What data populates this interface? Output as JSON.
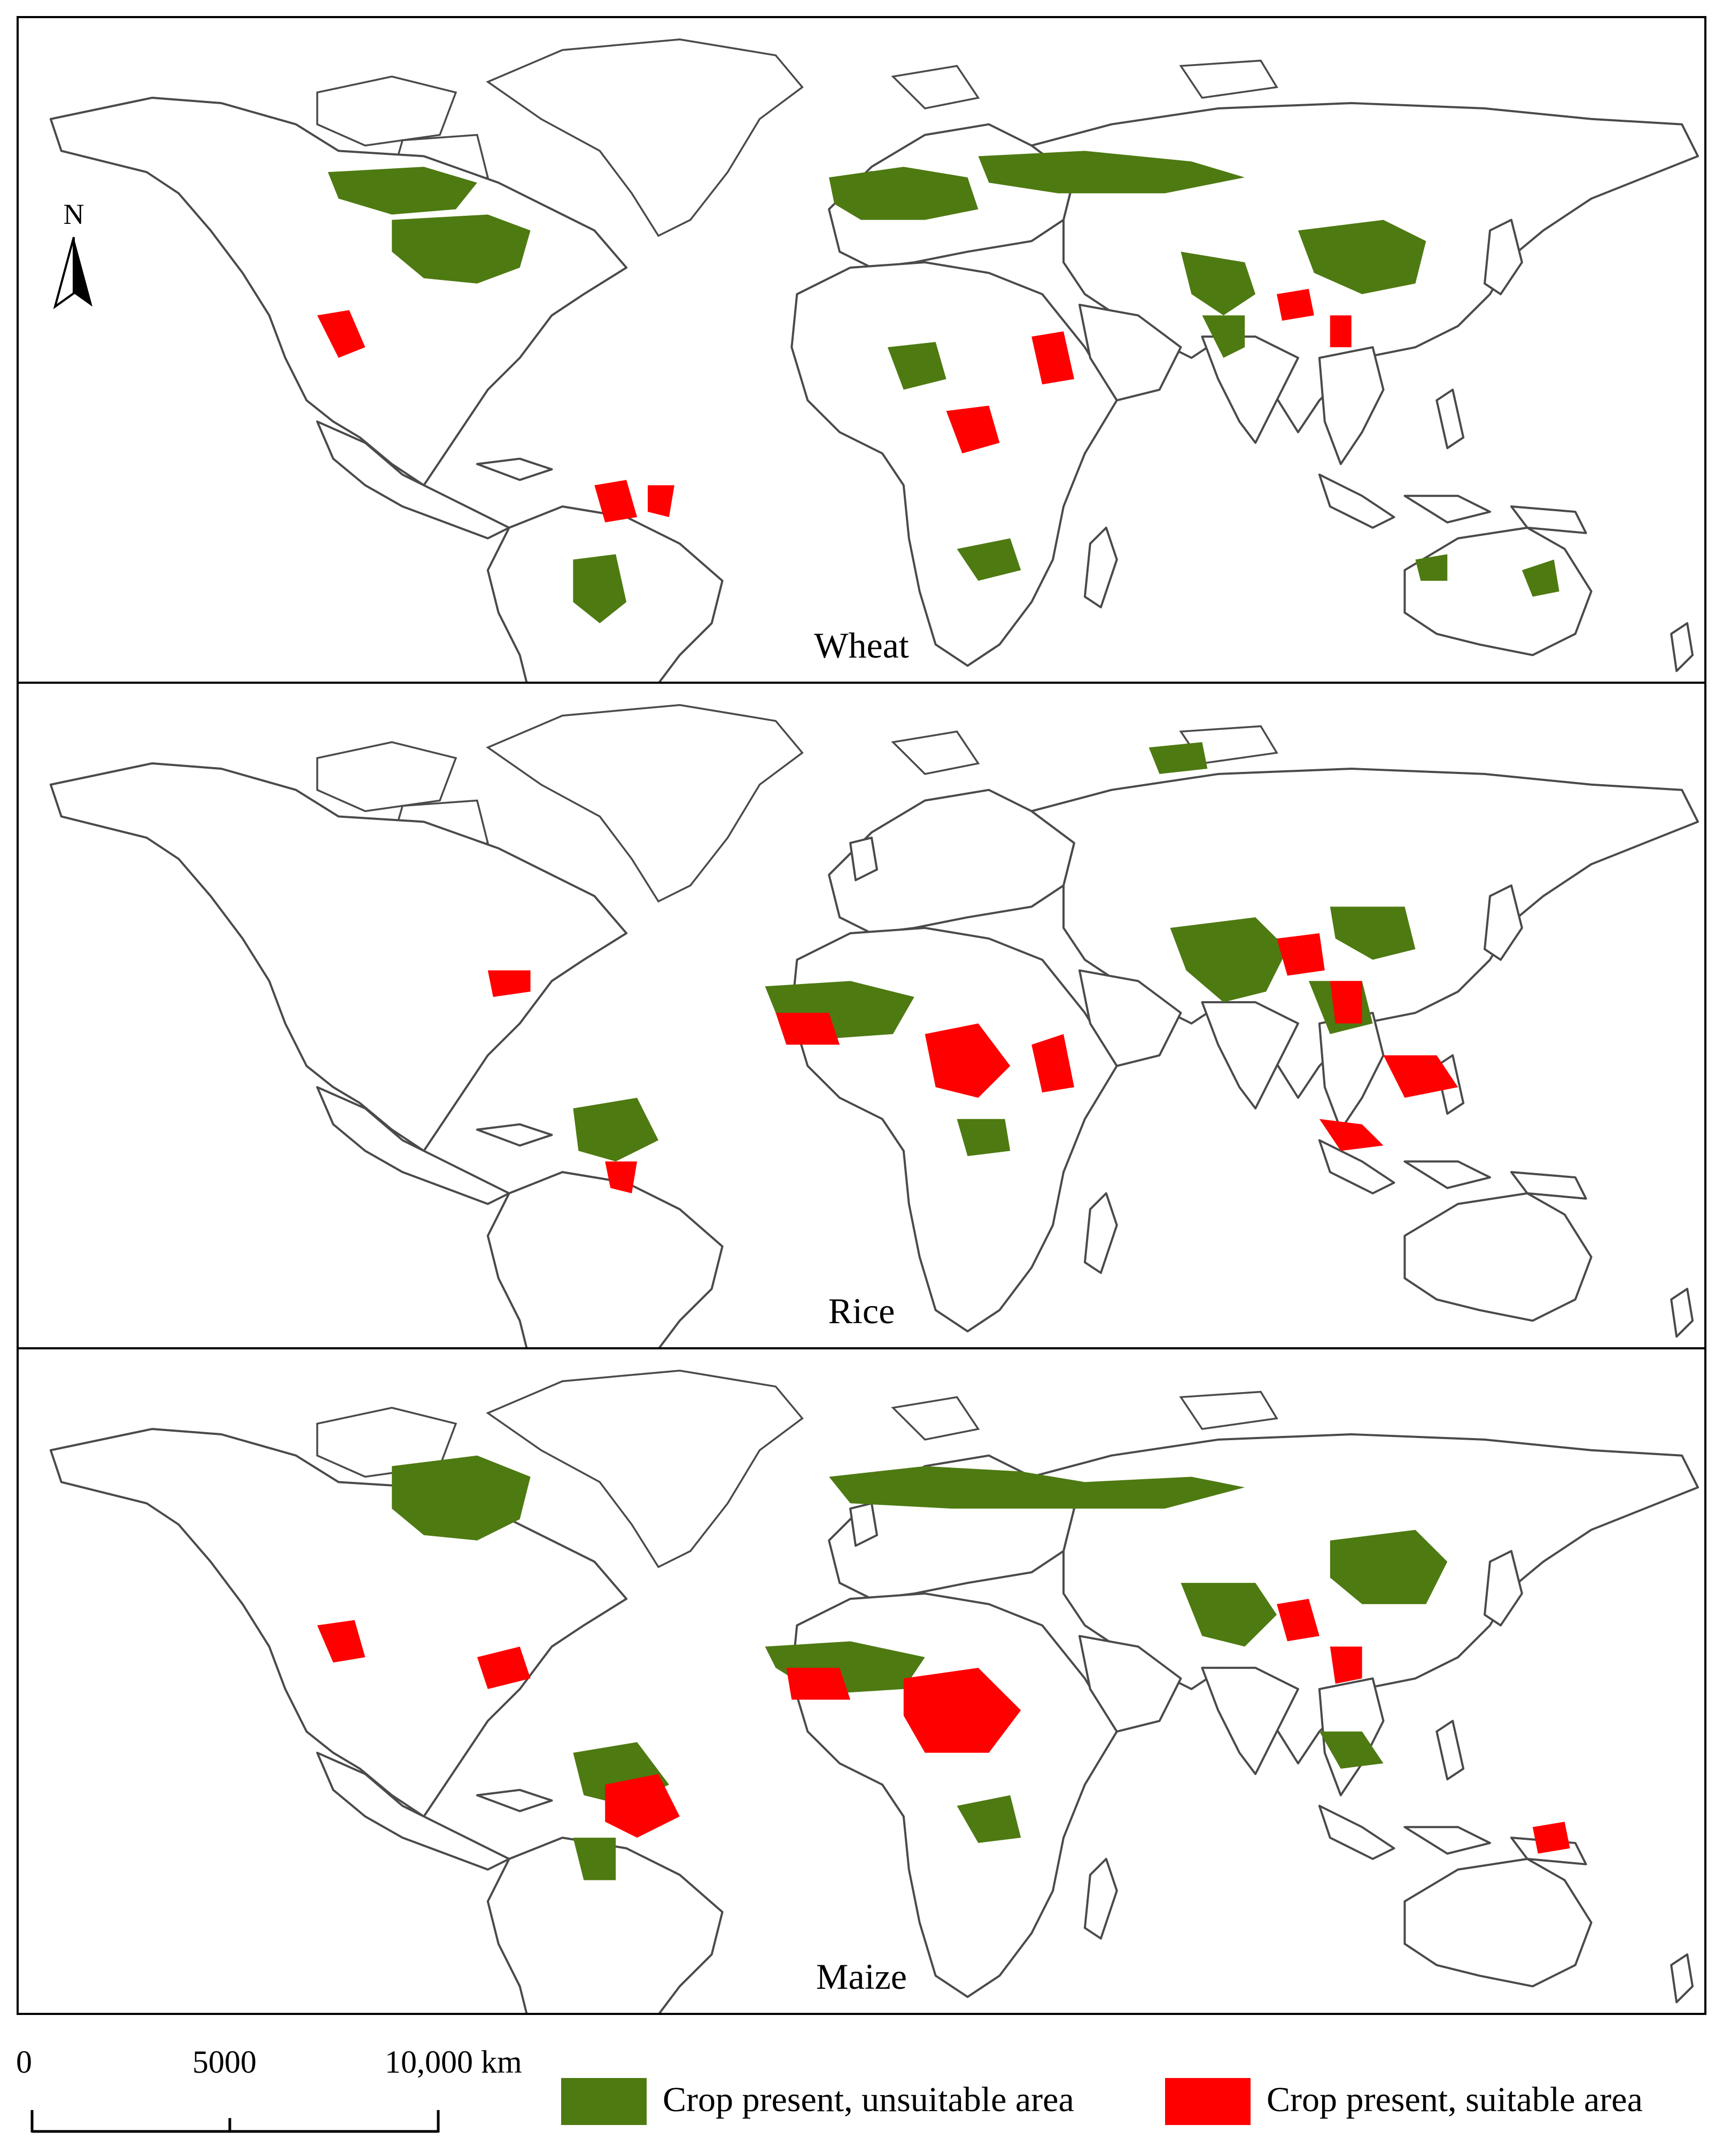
{
  "panels": [
    {
      "id": "wheat",
      "label": "Wheat"
    },
    {
      "id": "rice",
      "label": "Rice"
    },
    {
      "id": "maize",
      "label": "Maize"
    }
  ],
  "north_arrow": {
    "letter": "N"
  },
  "scale_bar": {
    "ticks": [
      "0",
      "5000",
      "10,000 km"
    ]
  },
  "legend": {
    "unsuitable": {
      "label": "Crop present, unsuitable area",
      "color": "#4e7a12"
    },
    "suitable": {
      "label": "Crop present, suitable area",
      "color": "#ff0000"
    }
  },
  "colors": {
    "border": "#000000",
    "coastline": "#4a4a4a",
    "background": "#ffffff"
  }
}
